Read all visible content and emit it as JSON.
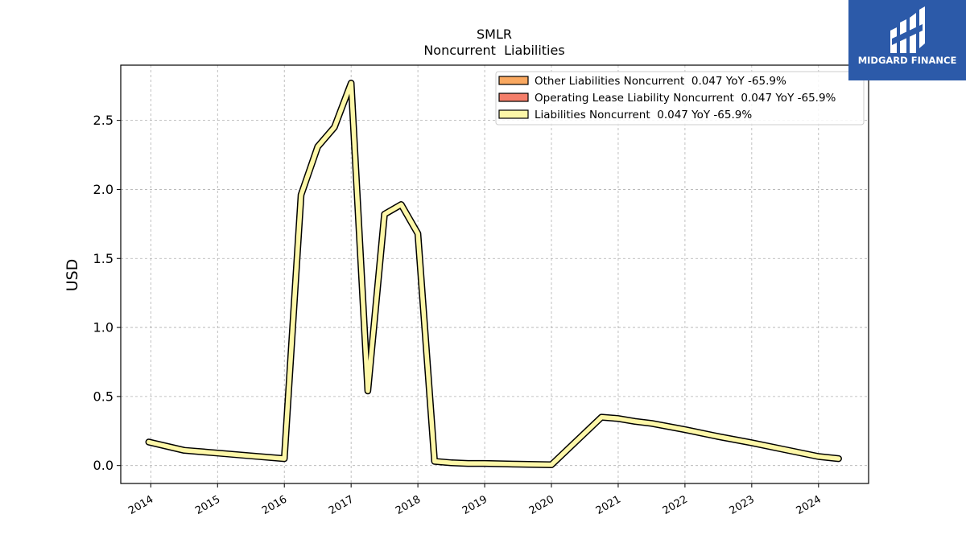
{
  "chart_data": {
    "type": "line",
    "title": "SMLR",
    "subtitle": "Noncurrent  Liabilities",
    "xlabel": "",
    "ylabel": "USD",
    "xlim": [
      2013.55,
      2024.75
    ],
    "ylim": [
      -0.13,
      2.9
    ],
    "grid": true,
    "legend_position": "top-right",
    "x_ticks": [
      2014,
      2015,
      2016,
      2017,
      2018,
      2019,
      2020,
      2021,
      2022,
      2023,
      2024
    ],
    "x_tick_labels": [
      "2014",
      "2015",
      "2016",
      "2017",
      "2018",
      "2019",
      "2020",
      "2021",
      "2022",
      "2023",
      "2024"
    ],
    "y_ticks": [
      0.0,
      0.5,
      1.0,
      1.5,
      2.0,
      2.5
    ],
    "y_tick_labels": [
      "0.0",
      "0.5",
      "1.0",
      "1.5",
      "2.0",
      "2.5"
    ],
    "legend": [
      {
        "label": "Other Liabilities Noncurrent  0.047 YoY -65.9%",
        "color": "#f9a860"
      },
      {
        "label": "Operating Lease Liability Noncurrent  0.047 YoY -65.9%",
        "color": "#f47e6a"
      },
      {
        "label": "Liabilities Noncurrent  0.047 YoY -65.9%",
        "color": "#fdf7a8"
      }
    ],
    "series": [
      {
        "name": "Liabilities Noncurrent  0.047 YoY -65.9%",
        "color": "#fdf7a8",
        "x": [
          2013.97,
          2014.5,
          2015.0,
          2015.5,
          2016.0,
          2016.25,
          2016.5,
          2016.75,
          2017.0,
          2017.25,
          2017.5,
          2017.75,
          2018.0,
          2018.25,
          2018.5,
          2018.75,
          2019.0,
          2019.5,
          2020.0,
          2020.75,
          2021.0,
          2021.25,
          2021.5,
          2022.0,
          2022.5,
          2023.0,
          2023.5,
          2024.0,
          2024.3
        ],
        "y": [
          0.17,
          0.11,
          0.09,
          0.07,
          0.05,
          1.96,
          2.31,
          2.45,
          2.77,
          0.54,
          1.82,
          1.89,
          1.68,
          0.03,
          0.02,
          0.015,
          0.015,
          0.01,
          0.005,
          0.35,
          0.34,
          0.32,
          0.305,
          0.26,
          0.21,
          0.165,
          0.115,
          0.065,
          0.05
        ]
      }
    ]
  },
  "brand": {
    "name": "MIDGARD FINANCE",
    "icon": "midgard-logo-icon",
    "color": "#2c5aa9"
  }
}
